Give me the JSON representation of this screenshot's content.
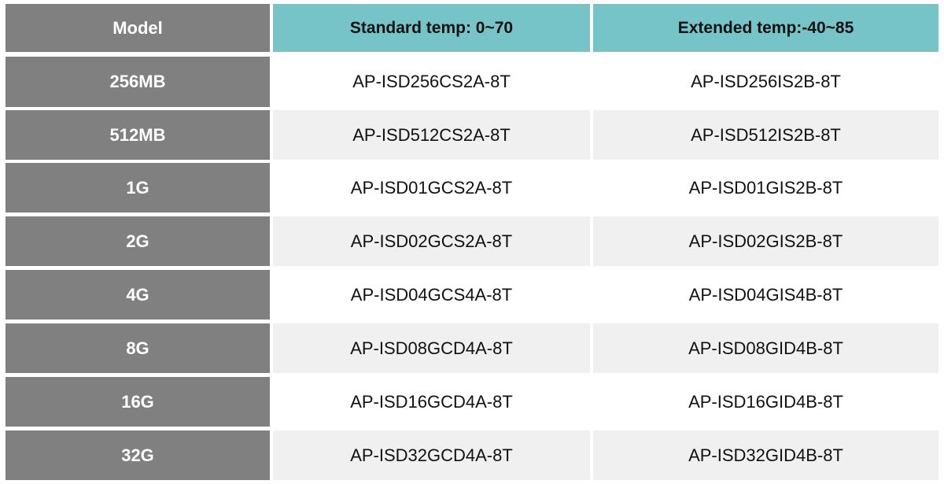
{
  "table": {
    "headers": [
      "Model",
      "Standard  temp: 0~70",
      "Extended temp:-40~85"
    ],
    "rows": [
      [
        "256MB",
        "AP-ISD256CS2A-8T",
        "AP-ISD256IS2B-8T"
      ],
      [
        "512MB",
        "AP-ISD512CS2A-8T",
        "AP-ISD512IS2B-8T"
      ],
      [
        "1G",
        "AP-ISD01GCS2A-8T",
        "AP-ISD01GIS2B-8T"
      ],
      [
        "2G",
        "AP-ISD02GCS2A-8T",
        "AP-ISD02GIS2B-8T"
      ],
      [
        "4G",
        "AP-ISD04GCS4A-8T",
        "AP-ISD04GIS4B-8T"
      ],
      [
        "8G",
        "AP-ISD08GCD4A-8T",
        "AP-ISD08GID4B-8T"
      ],
      [
        "16G",
        "AP-ISD16GCD4A-8T",
        "AP-ISD16GID4B-8T"
      ],
      [
        "32G",
        "AP-ISD32GCD4A-8T",
        "AP-ISD32GID4B-8T"
      ]
    ]
  },
  "colors": {
    "model_column": "#808080",
    "header_accent": "#76c4c8",
    "alt_row": "#f0f0f0"
  }
}
